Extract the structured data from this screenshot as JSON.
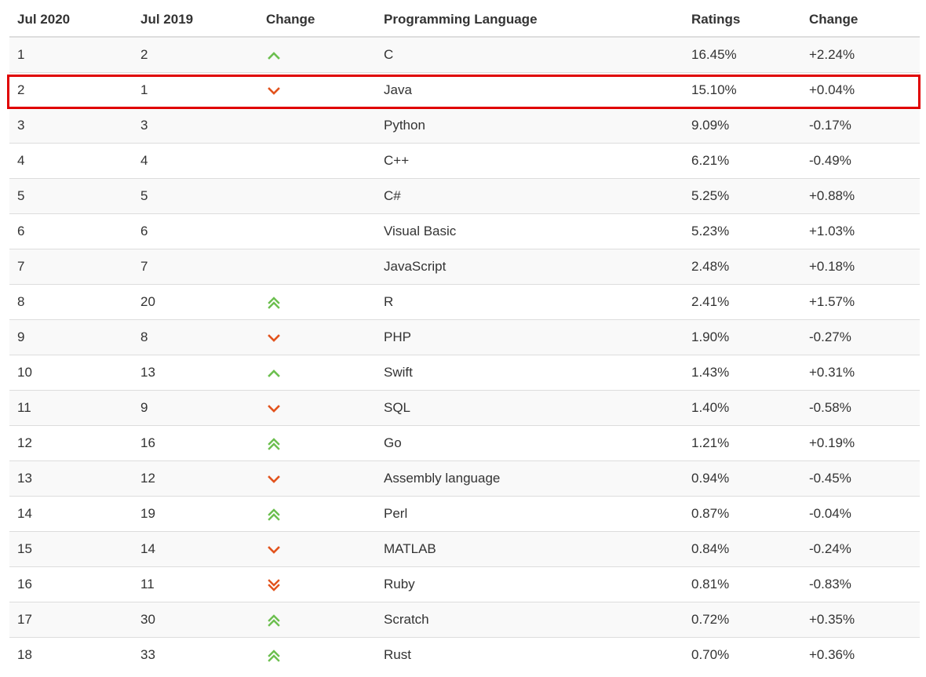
{
  "headers": {
    "col1": "Jul 2020",
    "col2": "Jul 2019",
    "col3": "Change",
    "col4": "Programming Language",
    "col5": "Ratings",
    "col6": "Change"
  },
  "colors": {
    "up": "#6cbf4f",
    "down": "#e2531d",
    "highlight": "#e00000"
  },
  "rows": [
    {
      "rank2020": "1",
      "rank2019": "2",
      "trend": "up",
      "language": "C",
      "rating": "16.45%",
      "change": "+2.24%"
    },
    {
      "rank2020": "2",
      "rank2019": "1",
      "trend": "down",
      "language": "Java",
      "rating": "15.10%",
      "change": "+0.04%"
    },
    {
      "rank2020": "3",
      "rank2019": "3",
      "trend": "none",
      "language": "Python",
      "rating": "9.09%",
      "change": "-0.17%"
    },
    {
      "rank2020": "4",
      "rank2019": "4",
      "trend": "none",
      "language": "C++",
      "rating": "6.21%",
      "change": "-0.49%"
    },
    {
      "rank2020": "5",
      "rank2019": "5",
      "trend": "none",
      "language": "C#",
      "rating": "5.25%",
      "change": "+0.88%"
    },
    {
      "rank2020": "6",
      "rank2019": "6",
      "trend": "none",
      "language": "Visual Basic",
      "rating": "5.23%",
      "change": "+1.03%"
    },
    {
      "rank2020": "7",
      "rank2019": "7",
      "trend": "none",
      "language": "JavaScript",
      "rating": "2.48%",
      "change": "+0.18%"
    },
    {
      "rank2020": "8",
      "rank2019": "20",
      "trend": "double-up",
      "language": "R",
      "rating": "2.41%",
      "change": "+1.57%"
    },
    {
      "rank2020": "9",
      "rank2019": "8",
      "trend": "down",
      "language": "PHP",
      "rating": "1.90%",
      "change": "-0.27%"
    },
    {
      "rank2020": "10",
      "rank2019": "13",
      "trend": "up",
      "language": "Swift",
      "rating": "1.43%",
      "change": "+0.31%"
    },
    {
      "rank2020": "11",
      "rank2019": "9",
      "trend": "down",
      "language": "SQL",
      "rating": "1.40%",
      "change": "-0.58%"
    },
    {
      "rank2020": "12",
      "rank2019": "16",
      "trend": "double-up",
      "language": "Go",
      "rating": "1.21%",
      "change": "+0.19%"
    },
    {
      "rank2020": "13",
      "rank2019": "12",
      "trend": "down",
      "language": "Assembly language",
      "rating": "0.94%",
      "change": "-0.45%"
    },
    {
      "rank2020": "14",
      "rank2019": "19",
      "trend": "double-up",
      "language": "Perl",
      "rating": "0.87%",
      "change": "-0.04%"
    },
    {
      "rank2020": "15",
      "rank2019": "14",
      "trend": "down",
      "language": "MATLAB",
      "rating": "0.84%",
      "change": "-0.24%"
    },
    {
      "rank2020": "16",
      "rank2019": "11",
      "trend": "double-down",
      "language": "Ruby",
      "rating": "0.81%",
      "change": "-0.83%"
    },
    {
      "rank2020": "17",
      "rank2019": "30",
      "trend": "double-up",
      "language": "Scratch",
      "rating": "0.72%",
      "change": "+0.35%"
    },
    {
      "rank2020": "18",
      "rank2019": "33",
      "trend": "double-up",
      "language": "Rust",
      "rating": "0.70%",
      "change": "+0.36%"
    }
  ],
  "highlighted_language": "Java"
}
